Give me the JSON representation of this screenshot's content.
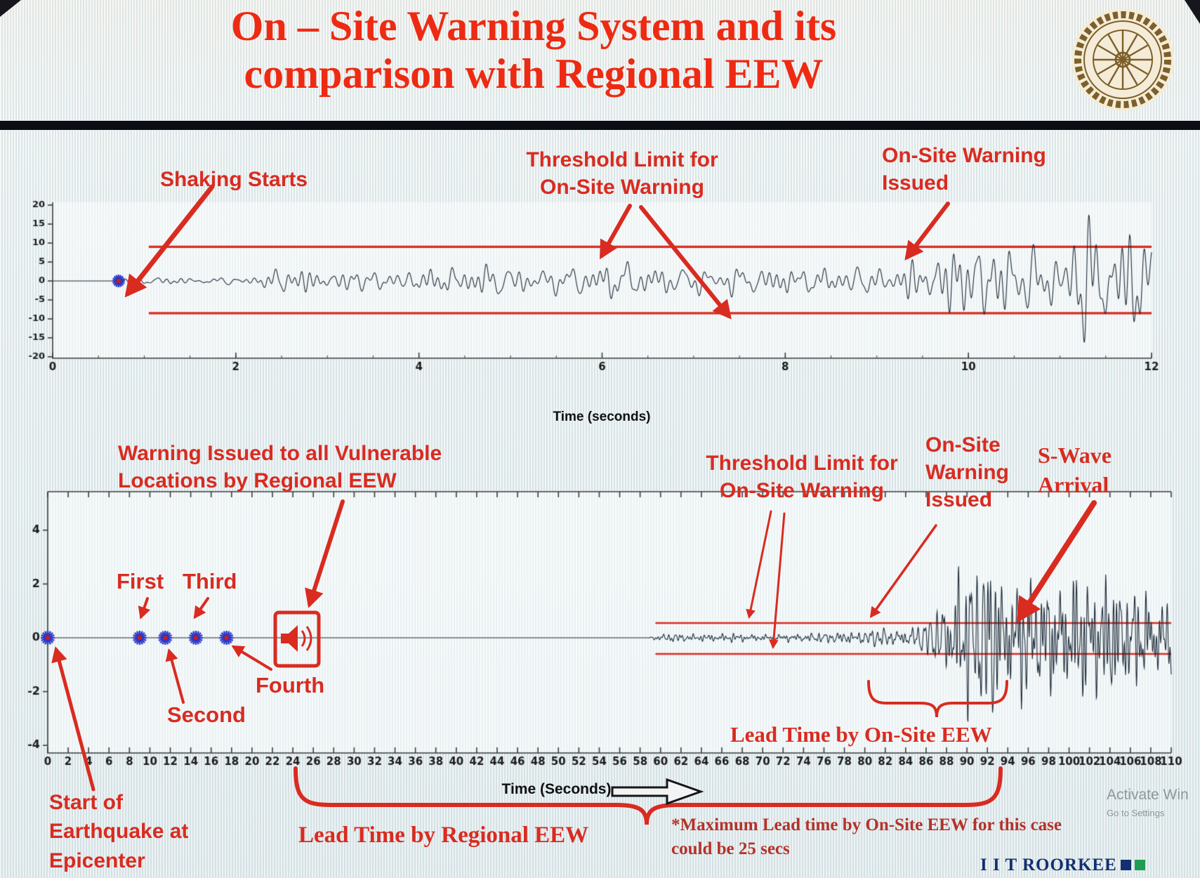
{
  "slide": {
    "title_line1": "On – Site Warning System and its",
    "title_line2": "comparison with Regional EEW",
    "brand": "I I T ROORKEE",
    "watermark_line1": "Activate Win",
    "watermark_line2": "Go to Settings"
  },
  "colors": {
    "accent_red": "#d92b20",
    "title_red": "#ee2a12",
    "note_red": "#b33228",
    "waveform": "#1c2a38",
    "threshold": "#d92b20",
    "marker_blue": "#2936c8",
    "brand_navy": "#123070",
    "brand_green": "#1f9d55",
    "watermark_gray": "#8d979c"
  },
  "annotations": {
    "shaking_starts": "Shaking Starts",
    "threshold_top": "Threshold Limit for On-Site Warning",
    "onsite_warning_top": "On-Site Warning Issued",
    "regional_warning": "Warning Issued to all Vulnerable Locations by Regional EEW",
    "first": "First",
    "second": "Second",
    "third": "Third",
    "fourth": "Fourth",
    "threshold_bottom": "Threshold Limit for On-Site Warning",
    "onsite_warning_bottom": "On-Site Warning Issued",
    "s_wave_arrival": "S-Wave Arrival",
    "lead_time_onsite": "Lead Time by On-Site EEW",
    "lead_time_regional": "Lead Time by Regional EEW",
    "start_epicenter": "Start of Earthquake at Epicenter",
    "max_lead_note_line1": "*Maximum Lead time by On-Site EEW for this case",
    "max_lead_note_line2": "could be 25 secs"
  },
  "chart_data": [
    {
      "type": "line",
      "title": "",
      "series_name": "on-site ground motion record",
      "xlabel": "Time (seconds)",
      "ylabel": "",
      "xlim": [
        0,
        12
      ],
      "xticks": [
        0,
        2,
        4,
        6,
        8,
        10,
        12
      ],
      "ylim": [
        -20,
        20
      ],
      "yticks": [
        20,
        15,
        10,
        5,
        0,
        -5,
        -10,
        -15,
        -20
      ],
      "grid": false,
      "legend": "none",
      "threshold_upper": 9,
      "threshold_lower": -8.5,
      "threshold_x_start": 1.05,
      "markers": [
        {
          "label": "Shaking Starts",
          "t": 0.72
        }
      ],
      "onsite_warning_issued_t": 9.2,
      "dominant_freq_hz": 6,
      "amplitude_envelope": [
        [
          0,
          0
        ],
        [
          0.7,
          0
        ],
        [
          0.74,
          0.5
        ],
        [
          1.1,
          0.8
        ],
        [
          1.6,
          1.0
        ],
        [
          2.2,
          1.1
        ],
        [
          2.45,
          3.6
        ],
        [
          3.1,
          2.6
        ],
        [
          3.8,
          3.2
        ],
        [
          4.6,
          3.8
        ],
        [
          5.4,
          3.2
        ],
        [
          6.1,
          4.1
        ],
        [
          6.9,
          3.4
        ],
        [
          7.7,
          3.1
        ],
        [
          8.5,
          3.7
        ],
        [
          9.1,
          4.2
        ],
        [
          9.5,
          6.0
        ],
        [
          10.0,
          9.5
        ],
        [
          10.4,
          12.5
        ],
        [
          10.9,
          10.5
        ],
        [
          11.3,
          13.5
        ],
        [
          11.7,
          11.5
        ],
        [
          12,
          12.5
        ]
      ]
    },
    {
      "type": "line",
      "title": "",
      "series_name": "regional record with P-wave detections",
      "xlabel": "Time (Seconds)",
      "ylabel": "",
      "xlim": [
        0,
        110
      ],
      "xticks": [
        0,
        2,
        4,
        6,
        8,
        10,
        12,
        14,
        16,
        18,
        20,
        22,
        24,
        26,
        28,
        30,
        32,
        34,
        36,
        38,
        40,
        42,
        44,
        46,
        48,
        50,
        52,
        54,
        56,
        58,
        60,
        62,
        64,
        66,
        68,
        70,
        72,
        74,
        76,
        78,
        80,
        82,
        84,
        86,
        88,
        90,
        92,
        94,
        96,
        98,
        100,
        102,
        104,
        106,
        108,
        110
      ],
      "ylim": [
        -4,
        4
      ],
      "yticks": [
        4,
        2,
        0,
        -2,
        -4
      ],
      "grid": false,
      "legend": "none",
      "threshold_upper": 0.55,
      "threshold_lower": -0.6,
      "threshold_x_start": 59.5,
      "markers": [
        {
          "label": "Start of Earthquake at Epicenter",
          "t": 0
        },
        {
          "label": "First",
          "t": 9
        },
        {
          "label": "Second",
          "t": 11.5
        },
        {
          "label": "Third",
          "t": 14.5
        },
        {
          "label": "Fourth",
          "t": 17.5
        }
      ],
      "regional_warning_issued_t": 24,
      "onsite_warning_issued_t": 80,
      "s_wave_arrival_t": 93,
      "max_lead_time_onsite_secs": 25,
      "dominant_freq_hz": 1.6,
      "amplitude_envelope": [
        [
          0,
          0
        ],
        [
          58.8,
          0
        ],
        [
          59.3,
          0.12
        ],
        [
          61,
          0.16
        ],
        [
          64,
          0.13
        ],
        [
          67,
          0.17
        ],
        [
          70,
          0.14
        ],
        [
          73,
          0.18
        ],
        [
          76,
          0.16
        ],
        [
          79,
          0.2
        ],
        [
          81,
          0.24
        ],
        [
          83,
          0.3
        ],
        [
          85,
          0.38
        ],
        [
          86.5,
          0.6
        ],
        [
          88,
          1.4
        ],
        [
          89.5,
          2.6
        ],
        [
          91,
          2.2
        ],
        [
          92.5,
          2.9
        ],
        [
          94,
          2.4
        ],
        [
          95.5,
          3.0
        ],
        [
          97,
          2.3
        ],
        [
          98.5,
          2.8
        ],
        [
          100,
          2.5
        ],
        [
          101.5,
          2.9
        ],
        [
          103,
          2.2
        ],
        [
          104.5,
          2.5
        ],
        [
          106,
          1.9
        ],
        [
          107.5,
          2.2
        ],
        [
          109,
          1.7
        ],
        [
          110,
          1.8
        ]
      ]
    }
  ]
}
